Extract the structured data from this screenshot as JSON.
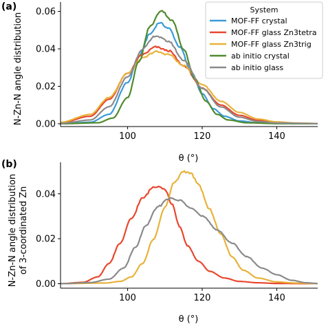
{
  "chart_data": [
    {
      "panel": "(a)",
      "type": "line",
      "xlabel": "θ (°)",
      "ylabel": "N-Zn-N angle distribution",
      "xlim": [
        82,
        151
      ],
      "ylim": [
        -0.0015,
        0.065
      ],
      "xticks": [
        100,
        120,
        140
      ],
      "xtick_labels": [
        "100",
        "120",
        "140"
      ],
      "yticks": [
        0.0,
        0.02,
        0.04,
        0.06
      ],
      "ytick_labels": [
        "0.00",
        "0.02",
        "0.04",
        "0.06"
      ],
      "grid": false,
      "legend": {
        "title": "System",
        "placement": "top-right",
        "entries": [
          "MOF-FF crystal",
          "MOF-FF glass Zn3tetra",
          "MOF-FF glass Zn3trig",
          "ab initio crystal",
          "ab initio glass"
        ]
      },
      "series": [
        {
          "name": "MOF-FF crystal",
          "color": "#3a9ad9",
          "peak_x": 108.5,
          "peak_y": 0.054,
          "points": [
            [
              82,
              0.0
            ],
            [
              90,
              0.0008
            ],
            [
              95,
              0.005
            ],
            [
              100,
              0.022
            ],
            [
              103,
              0.036
            ],
            [
              106,
              0.048
            ],
            [
              108.5,
              0.054
            ],
            [
              111,
              0.051
            ],
            [
              114,
              0.041
            ],
            [
              117,
              0.028
            ],
            [
              120,
              0.016
            ],
            [
              123,
              0.008
            ],
            [
              126,
              0.004
            ],
            [
              130,
              0.0015
            ],
            [
              135,
              0.0005
            ],
            [
              140,
              0.0001
            ],
            [
              151,
              0.0
            ]
          ]
        },
        {
          "name": "MOF-FF glass Zn3tetra",
          "color": "#e8472e",
          "peak_x": 107.5,
          "peak_y": 0.041,
          "points": [
            [
              82,
              0.0005
            ],
            [
              90,
              0.004
            ],
            [
              95,
              0.013
            ],
            [
              100,
              0.027
            ],
            [
              104,
              0.037
            ],
            [
              107.5,
              0.041
            ],
            [
              111,
              0.039
            ],
            [
              115,
              0.031
            ],
            [
              120,
              0.019
            ],
            [
              125,
              0.01
            ],
            [
              130,
              0.0045
            ],
            [
              135,
              0.0018
            ],
            [
              140,
              0.0007
            ],
            [
              145,
              0.0003
            ],
            [
              151,
              0.0001
            ]
          ]
        },
        {
          "name": "MOF-FF glass Zn3trig",
          "color": "#e8b23a",
          "peak_x": 107.5,
          "peak_y": 0.0385,
          "points": [
            [
              82,
              0.0008
            ],
            [
              90,
              0.005
            ],
            [
              95,
              0.014
            ],
            [
              100,
              0.027
            ],
            [
              104,
              0.035
            ],
            [
              107.5,
              0.0385
            ],
            [
              111,
              0.037
            ],
            [
              115,
              0.031
            ],
            [
              120,
              0.021
            ],
            [
              125,
              0.012
            ],
            [
              130,
              0.006
            ],
            [
              135,
              0.0025
            ],
            [
              140,
              0.001
            ],
            [
              145,
              0.0004
            ],
            [
              151,
              0.0001
            ]
          ]
        },
        {
          "name": "ab initio crystal",
          "color": "#4f8a2c",
          "peak_x": 109,
          "peak_y": 0.0605,
          "points": [
            [
              82,
              0.0
            ],
            [
              92,
              0.0005
            ],
            [
              96,
              0.003
            ],
            [
              100,
              0.014
            ],
            [
              103,
              0.033
            ],
            [
              106,
              0.052
            ],
            [
              109,
              0.0605
            ],
            [
              112,
              0.055
            ],
            [
              115,
              0.04
            ],
            [
              118,
              0.024
            ],
            [
              121,
              0.012
            ],
            [
              124,
              0.005
            ],
            [
              127,
              0.002
            ],
            [
              132,
              0.0005
            ],
            [
              140,
              0.0001
            ],
            [
              151,
              0.0
            ]
          ]
        },
        {
          "name": "ab initio glass",
          "color": "#8a8a8a",
          "peak_x": 107.5,
          "peak_y": 0.047,
          "points": [
            [
              82,
              0.0002
            ],
            [
              90,
              0.002
            ],
            [
              95,
              0.009
            ],
            [
              100,
              0.025
            ],
            [
              104,
              0.04
            ],
            [
              107.5,
              0.047
            ],
            [
              111,
              0.044
            ],
            [
              115,
              0.034
            ],
            [
              120,
              0.019
            ],
            [
              125,
              0.009
            ],
            [
              130,
              0.0035
            ],
            [
              135,
              0.0012
            ],
            [
              140,
              0.0004
            ],
            [
              151,
              0.0001
            ]
          ]
        }
      ]
    },
    {
      "panel": "(b)",
      "type": "line",
      "xlabel": "θ (°)",
      "ylabel": "N-Zn-N angle distribution of 3-coordinated Zn",
      "ylabel_lines": [
        "N-Zn-N angle distribution",
        "of 3-coordinated Zn"
      ],
      "xlim": [
        82,
        151
      ],
      "ylim": [
        -0.002,
        0.054
      ],
      "xticks": [
        100,
        120,
        140
      ],
      "xtick_labels": [
        "100",
        "120",
        "140"
      ],
      "yticks": [
        0.0,
        0.02,
        0.04
      ],
      "ytick_labels": [
        "0.00",
        "0.02",
        "0.04"
      ],
      "grid": false,
      "series": [
        {
          "name": "MOF-FF glass Zn3tetra",
          "color": "#e8472e",
          "points": [
            [
              82,
              0.0
            ],
            [
              88,
              0.0006
            ],
            [
              92,
              0.003
            ],
            [
              95,
              0.009
            ],
            [
              98,
              0.018
            ],
            [
              101,
              0.029
            ],
            [
              104,
              0.038
            ],
            [
              107,
              0.043
            ],
            [
              108.5,
              0.0435
            ],
            [
              110,
              0.042
            ],
            [
              112,
              0.035
            ],
            [
              114,
              0.025
            ],
            [
              116,
              0.017
            ],
            [
              119,
              0.01
            ],
            [
              122,
              0.0055
            ],
            [
              126,
              0.0025
            ],
            [
              130,
              0.001
            ],
            [
              135,
              0.0004
            ],
            [
              140,
              0.0001
            ],
            [
              151,
              0.0
            ]
          ]
        },
        {
          "name": "MOF-FF glass Zn3trig",
          "color": "#e8b23a",
          "points": [
            [
              82,
              0.0
            ],
            [
              94,
              0.0003
            ],
            [
              98,
              0.001
            ],
            [
              101,
              0.003
            ],
            [
              104,
              0.009
            ],
            [
              107,
              0.02
            ],
            [
              110,
              0.034
            ],
            [
              112.5,
              0.045
            ],
            [
              115,
              0.05
            ],
            [
              117,
              0.049
            ],
            [
              119,
              0.044
            ],
            [
              122,
              0.033
            ],
            [
              125,
              0.022
            ],
            [
              128,
              0.012
            ],
            [
              131,
              0.006
            ],
            [
              135,
              0.0025
            ],
            [
              140,
              0.0008
            ],
            [
              145,
              0.0003
            ],
            [
              151,
              0.0
            ]
          ]
        },
        {
          "name": "ab initio glass",
          "color": "#8a8a8a",
          "points": [
            [
              82,
              0.0
            ],
            [
              90,
              0.0005
            ],
            [
              95,
              0.002
            ],
            [
              99,
              0.007
            ],
            [
              102,
              0.016
            ],
            [
              105,
              0.026
            ],
            [
              108,
              0.034
            ],
            [
              111,
              0.038
            ],
            [
              114,
              0.037
            ],
            [
              117,
              0.034
            ],
            [
              120,
              0.03
            ],
            [
              124,
              0.024
            ],
            [
              128,
              0.018
            ],
            [
              132,
              0.012
            ],
            [
              136,
              0.007
            ],
            [
              140,
              0.004
            ],
            [
              144,
              0.0015
            ],
            [
              148,
              0.0004
            ],
            [
              151,
              0.0001
            ]
          ]
        }
      ]
    }
  ]
}
